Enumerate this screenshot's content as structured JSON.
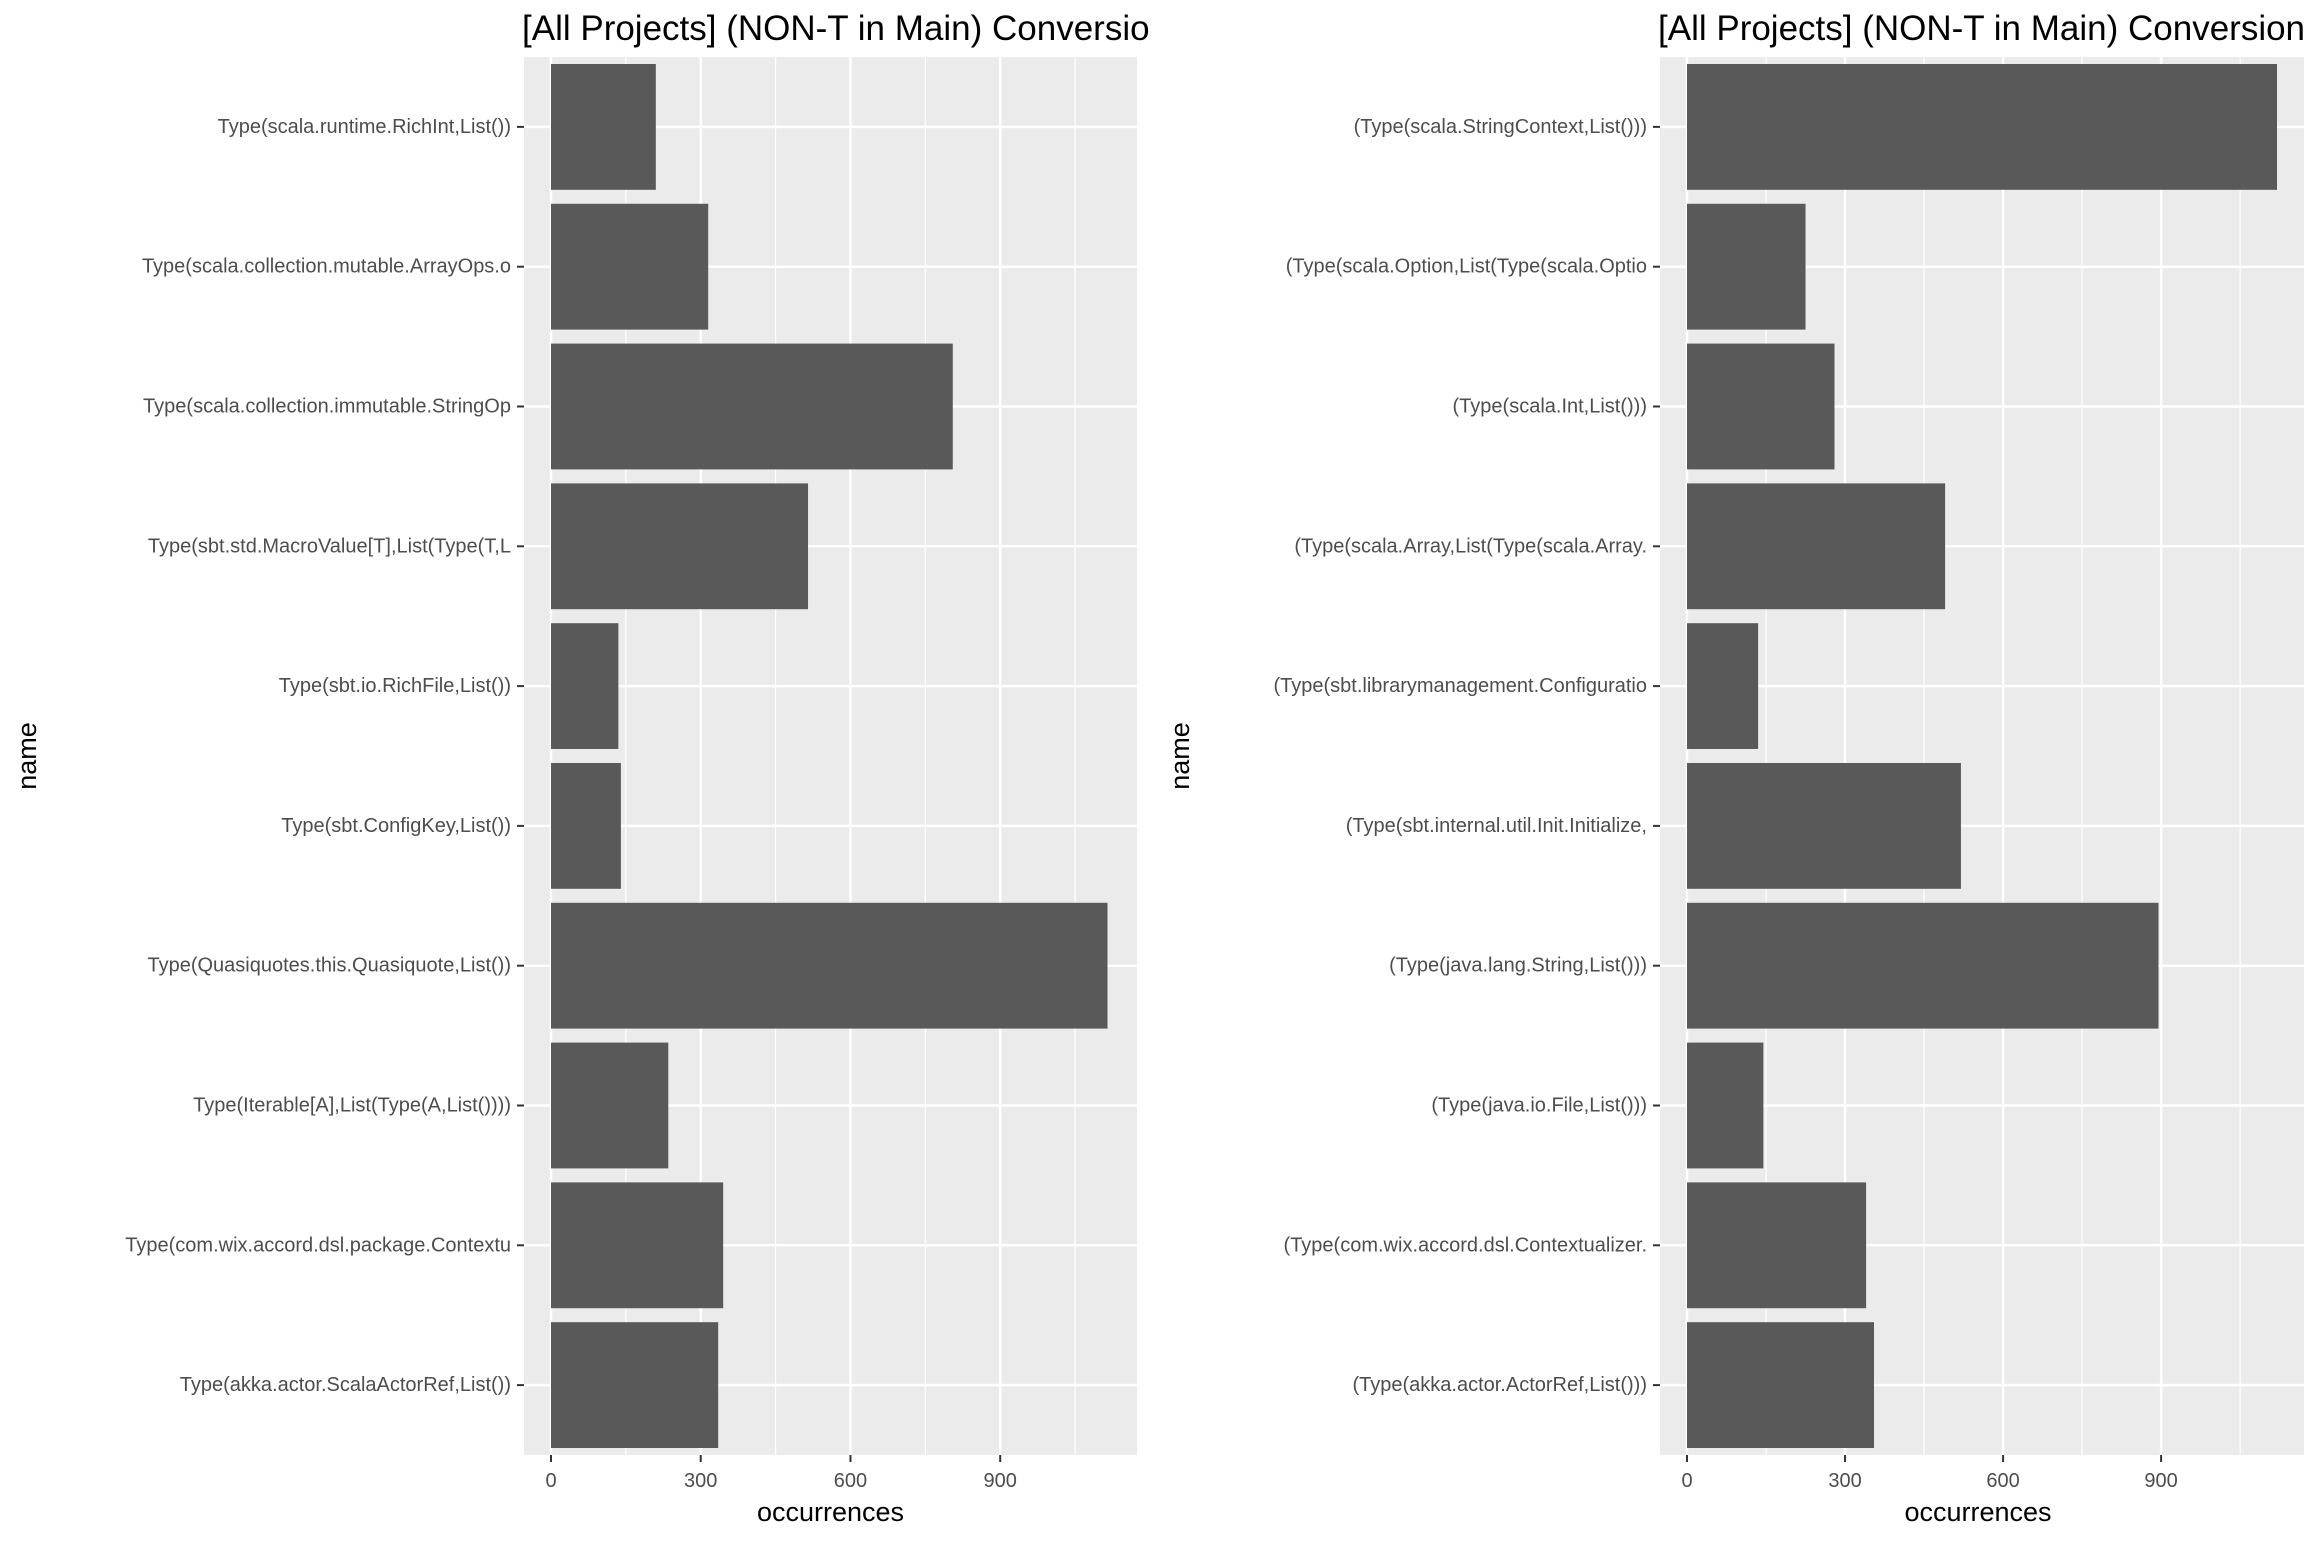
{
  "chart_data": [
    {
      "type": "bar",
      "orientation": "horizontal",
      "title": "[All Projects] (NON-T in Main) Conversio",
      "xlabel": "occurrences",
      "ylabel": "name",
      "xlim": [
        0,
        1120
      ],
      "xticks": [
        0,
        300,
        600,
        900
      ],
      "grid": true,
      "bar_color": "#595959",
      "panel_color": "#ebebeb",
      "categories": [
        "Type(scala.runtime.RichInt,List())",
        "Type(scala.collection.mutable.ArrayOps.o",
        "Type(scala.collection.immutable.StringOp",
        "Type(sbt.std.MacroValue[T],List(Type(T,L",
        "Type(sbt.io.RichFile,List())",
        "Type(sbt.ConfigKey,List())",
        "Type(Quasiquotes.this.Quasiquote,List())",
        "Type(Iterable[A],List(Type(A,List())))",
        "Type(com.wix.accord.dsl.package.Contextu",
        "Type(akka.actor.ScalaActorRef,List())"
      ],
      "values": [
        210,
        315,
        805,
        515,
        135,
        140,
        1115,
        235,
        345,
        335
      ]
    },
    {
      "type": "bar",
      "orientation": "horizontal",
      "title": "[All Projects] (NON-T in Main) Conversion",
      "xlabel": "occurrences",
      "ylabel": "name",
      "xlim": [
        0,
        1120
      ],
      "xticks": [
        0,
        300,
        600,
        900
      ],
      "grid": true,
      "bar_color": "#595959",
      "panel_color": "#ebebeb",
      "categories": [
        "(Type(scala.StringContext,List()))",
        "(Type(scala.Option,List(Type(scala.Optio",
        "(Type(scala.Int,List()))",
        "(Type(scala.Array,List(Type(scala.Array.",
        "(Type(sbt.librarymanagement.Configuratio",
        "(Type(sbt.internal.util.Init.Initialize,",
        "(Type(java.lang.String,List()))",
        "(Type(java.io.File,List()))",
        "(Type(com.wix.accord.dsl.Contextualizer.",
        "(Type(akka.actor.ActorRef,List()))"
      ],
      "values": [
        1120,
        225,
        280,
        490,
        135,
        520,
        895,
        145,
        340,
        355
      ]
    }
  ]
}
